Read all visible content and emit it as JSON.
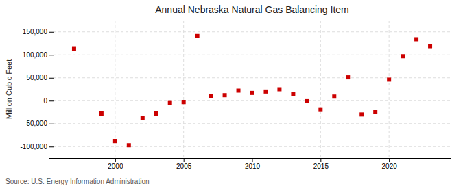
{
  "chart_data": {
    "type": "scatter",
    "title": "Annual Nebraska Natural Gas Balancing Item",
    "ylabel": "Million Cubic Feet",
    "source": "Source: U.S. Energy Information Administration",
    "x": [
      1997,
      1999,
      2000,
      2001,
      2002,
      2003,
      2004,
      2005,
      2006,
      2007,
      2008,
      2009,
      2010,
      2011,
      2012,
      2013,
      2014,
      2015,
      2016,
      2017,
      2018,
      2019,
      2020,
      2021,
      2022,
      2023
    ],
    "values": [
      113000,
      -28000,
      -88000,
      -97000,
      -38000,
      -28000,
      -5000,
      -3000,
      141000,
      10000,
      12000,
      22000,
      17000,
      20000,
      25000,
      14000,
      -1000,
      -20000,
      9000,
      51000,
      -30000,
      -25000,
      46000,
      97000,
      134000,
      119000
    ],
    "color": "#cc0000",
    "marker": "square",
    "xlim": [
      1995.5,
      2024.5
    ],
    "xticks": [
      2000,
      2005,
      2010,
      2015,
      2020
    ],
    "ylim": [
      -125000,
      175000
    ],
    "yticks": [
      {
        "value": -100000,
        "label": "-100,000"
      },
      {
        "value": -50000,
        "label": "-50,000"
      },
      0,
      {
        "value": 50000,
        "label": "50,000"
      },
      {
        "value": 100000,
        "label": "100,000"
      },
      {
        "value": 150000,
        "label": "150,000"
      }
    ],
    "grid": true
  }
}
